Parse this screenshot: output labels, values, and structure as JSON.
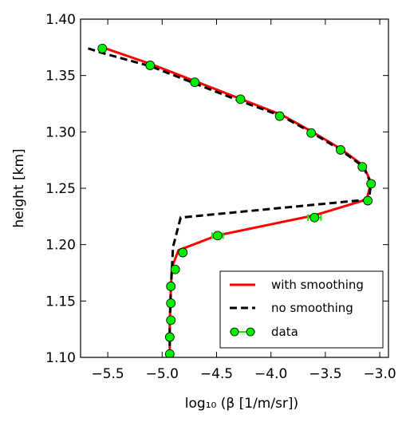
{
  "chart_data": {
    "type": "line",
    "xlabel": "log₁₀ (β [1/m/sr])",
    "ylabel": "height [km]",
    "xlim": [
      -5.75,
      -2.92
    ],
    "ylim": [
      1.1,
      1.4
    ],
    "xticks": [
      -5.5,
      -5.0,
      -4.5,
      -4.0,
      -3.5,
      -3.0
    ],
    "xtick_labels": [
      "−5.5",
      "−5.0",
      "−4.5",
      "−4.0",
      "−3.5",
      "−3.0"
    ],
    "yticks": [
      1.1,
      1.15,
      1.2,
      1.25,
      1.3,
      1.35,
      1.4
    ],
    "ytick_labels": [
      "1.10",
      "1.15",
      "1.20",
      "1.25",
      "1.30",
      "1.35",
      "1.40"
    ],
    "grid": false,
    "legend_position": "lower-right",
    "series": [
      {
        "name": "with smoothing",
        "style": "solid",
        "color": "#ff0000",
        "x": [
          -5.55,
          -5.1,
          -4.7,
          -4.3,
          -3.9,
          -3.62,
          -3.36,
          -3.15,
          -3.08,
          -3.12,
          -3.6,
          -4.0,
          -4.5,
          -4.85,
          -4.91,
          -4.92,
          -4.93,
          -4.93
        ],
        "y": [
          1.375,
          1.36,
          1.345,
          1.33,
          1.315,
          1.3,
          1.285,
          1.27,
          1.255,
          1.24,
          1.226,
          1.218,
          1.208,
          1.195,
          1.18,
          1.16,
          1.13,
          1.1
        ]
      },
      {
        "name": "no smoothing",
        "style": "dashed",
        "color": "#000000",
        "x": [
          -5.68,
          -5.55,
          -5.1,
          -4.7,
          -4.3,
          -3.9,
          -3.62,
          -3.36,
          -3.15,
          -3.08,
          -3.1,
          -4.83,
          -4.9,
          -4.91,
          -4.92,
          -4.93,
          -4.93
        ],
        "y": [
          1.374,
          1.37,
          1.358,
          1.343,
          1.328,
          1.314,
          1.299,
          1.284,
          1.269,
          1.254,
          1.24,
          1.224,
          1.198,
          1.18,
          1.16,
          1.13,
          1.1
        ]
      },
      {
        "name": "data",
        "style": "markers",
        "color": "#00ee00",
        "x": [
          -5.55,
          -5.11,
          -4.7,
          -4.28,
          -3.92,
          -3.63,
          -3.36,
          -3.16,
          -3.08,
          -3.11,
          -3.6,
          -4.49,
          -4.81,
          -4.88,
          -4.92,
          -4.92,
          -4.92,
          -4.93,
          -4.93
        ],
        "y": [
          1.374,
          1.359,
          1.344,
          1.329,
          1.314,
          1.299,
          1.284,
          1.269,
          1.254,
          1.239,
          1.224,
          1.208,
          1.193,
          1.178,
          1.163,
          1.148,
          1.133,
          1.118,
          1.103
        ],
        "xerr": [
          0,
          0,
          0,
          0,
          0,
          0,
          0,
          0,
          0,
          0,
          0.06,
          0.05,
          0,
          0,
          0,
          0,
          0,
          0,
          0
        ]
      }
    ]
  }
}
